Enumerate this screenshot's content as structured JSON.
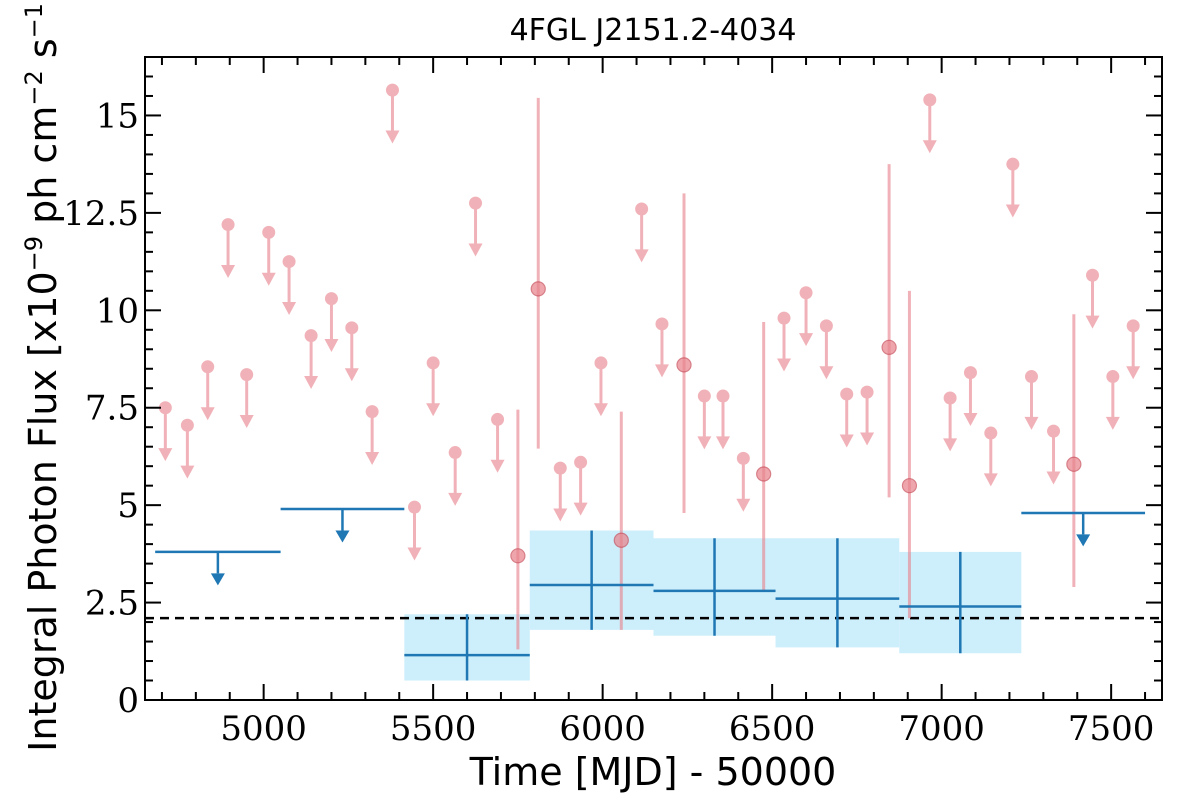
{
  "chart_data": {
    "type": "scatter",
    "title": "4FGL J2151.2-4034",
    "xlabel": "Time [MJD] - 50000",
    "ylabel": "Integral Photon Flux [x10^-9 ph cm^-2 s^-1]",
    "ylabel_parts": {
      "prefix": "Integral Photon Flux [x10",
      "exp1": "−9",
      "mid": " ph cm",
      "exp2": "−2",
      "mid2": " s",
      "exp3": "−1",
      "suffix": "]"
    },
    "xlim": [
      4650,
      7650
    ],
    "ylim": [
      0,
      16.5
    ],
    "xticks": [
      5000,
      5500,
      6000,
      6500,
      7000,
      7500
    ],
    "xtick_labels": [
      "5000",
      "5500",
      "6000",
      "6500",
      "7000",
      "7500"
    ],
    "yticks": [
      0,
      2.5,
      5,
      7.5,
      10,
      12.5,
      15
    ],
    "ytick_labels": [
      "0",
      "2.5",
      "5",
      "7.5",
      "10",
      "12.5",
      "15"
    ],
    "grid": false,
    "reference_line": {
      "y": 2.1,
      "style": "dashed",
      "color": "#000000"
    },
    "colors": {
      "short_bins": "#e8848d",
      "long_bins": "#1f77b4",
      "band_fill": "#cdeefb"
    },
    "short_bin_upper_limits": [
      {
        "x": 4710,
        "y": 7.5
      },
      {
        "x": 4775,
        "y": 7.05
      },
      {
        "x": 4835,
        "y": 8.55
      },
      {
        "x": 4895,
        "y": 12.2
      },
      {
        "x": 4950,
        "y": 8.35
      },
      {
        "x": 5015,
        "y": 12.0
      },
      {
        "x": 5075,
        "y": 11.25
      },
      {
        "x": 5140,
        "y": 9.35
      },
      {
        "x": 5200,
        "y": 10.3
      },
      {
        "x": 5260,
        "y": 9.55
      },
      {
        "x": 5320,
        "y": 7.4
      },
      {
        "x": 5380,
        "y": 15.65
      },
      {
        "x": 5445,
        "y": 4.95
      },
      {
        "x": 5500,
        "y": 8.65
      },
      {
        "x": 5565,
        "y": 6.35
      },
      {
        "x": 5625,
        "y": 12.75
      },
      {
        "x": 5690,
        "y": 7.2
      },
      {
        "x": 5875,
        "y": 5.95
      },
      {
        "x": 5935,
        "y": 6.1
      },
      {
        "x": 5995,
        "y": 8.65
      },
      {
        "x": 6115,
        "y": 12.6
      },
      {
        "x": 6175,
        "y": 9.65
      },
      {
        "x": 6300,
        "y": 7.8
      },
      {
        "x": 6355,
        "y": 7.8
      },
      {
        "x": 6415,
        "y": 6.2
      },
      {
        "x": 6535,
        "y": 9.8
      },
      {
        "x": 6600,
        "y": 10.45
      },
      {
        "x": 6660,
        "y": 9.6
      },
      {
        "x": 6720,
        "y": 7.85
      },
      {
        "x": 6780,
        "y": 7.9
      },
      {
        "x": 6965,
        "y": 15.4
      },
      {
        "x": 7025,
        "y": 7.75
      },
      {
        "x": 7085,
        "y": 8.4
      },
      {
        "x": 7145,
        "y": 6.85
      },
      {
        "x": 7210,
        "y": 13.75
      },
      {
        "x": 7265,
        "y": 8.3
      },
      {
        "x": 7330,
        "y": 6.9
      },
      {
        "x": 7445,
        "y": 10.9
      },
      {
        "x": 7505,
        "y": 8.3
      },
      {
        "x": 7565,
        "y": 9.6
      }
    ],
    "short_bin_detections": [
      {
        "x": 5750,
        "y": 3.7,
        "lo": 1.3,
        "hi": 7.45
      },
      {
        "x": 5810,
        "y": 10.55,
        "lo": 6.45,
        "hi": 15.45
      },
      {
        "x": 6055,
        "y": 4.1,
        "lo": 1.8,
        "hi": 7.4
      },
      {
        "x": 6240,
        "y": 8.6,
        "lo": 4.8,
        "hi": 13.0
      },
      {
        "x": 6475,
        "y": 5.8,
        "lo": 2.8,
        "hi": 9.7
      },
      {
        "x": 6845,
        "y": 9.05,
        "lo": 5.2,
        "hi": 13.75
      },
      {
        "x": 6905,
        "y": 5.5,
        "lo": 2.1,
        "hi": 10.5
      },
      {
        "x": 7390,
        "y": 6.05,
        "lo": 2.9,
        "hi": 9.9
      }
    ],
    "long_bin_upper_limits": [
      {
        "x0": 4680,
        "x1": 5050,
        "y": 3.8
      },
      {
        "x0": 5050,
        "x1": 5415,
        "y": 4.9
      },
      {
        "x0": 7235,
        "x1": 7600,
        "y": 4.8
      }
    ],
    "long_bin_detections": [
      {
        "x0": 5415,
        "x1": 5785,
        "y": 1.15,
        "lo": 0.5,
        "hi": 2.2
      },
      {
        "x0": 5785,
        "x1": 6150,
        "y": 2.95,
        "lo": 1.8,
        "hi": 4.35
      },
      {
        "x0": 6150,
        "x1": 6510,
        "y": 2.8,
        "lo": 1.65,
        "hi": 4.15
      },
      {
        "x0": 6510,
        "x1": 6875,
        "y": 2.6,
        "lo": 1.35,
        "hi": 4.15
      },
      {
        "x0": 6875,
        "x1": 7235,
        "y": 2.4,
        "lo": 1.2,
        "hi": 3.8
      }
    ]
  }
}
